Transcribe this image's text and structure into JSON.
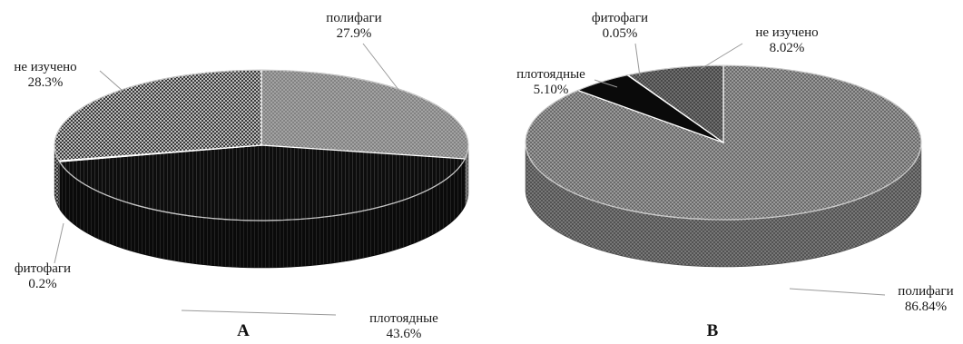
{
  "chart_data": [
    {
      "type": "pie",
      "panel_label": "A",
      "slices": [
        {
          "name": "полифаги",
          "value": 27.9,
          "label": "27.9%",
          "color": "#8a8a8a",
          "pattern": "dots-light"
        },
        {
          "name": "плотоядные",
          "value": 43.6,
          "label": "43.6%",
          "color": "#101010",
          "pattern": "vstripe-dark"
        },
        {
          "name": "фитофаги",
          "value": 0.2,
          "label": "0.2%",
          "color": "#cfcfcf",
          "pattern": "plain-light"
        },
        {
          "name": "не изучено",
          "value": 28.3,
          "label": "28.3%",
          "color": "#4a4a4a",
          "pattern": "check"
        }
      ]
    },
    {
      "type": "pie",
      "panel_label": "B",
      "slices": [
        {
          "name": "полифаги",
          "value": 86.84,
          "label": "86.84%",
          "color": "#8a8a8a",
          "pattern": "dots-mid"
        },
        {
          "name": "плотоядные",
          "value": 5.1,
          "label": "5.10%",
          "color": "#101010",
          "pattern": "solid-dark"
        },
        {
          "name": "фитофаги",
          "value": 0.05,
          "label": "0.05%",
          "color": "#cfcfcf",
          "pattern": "plain-light"
        },
        {
          "name": "не изучено",
          "value": 8.02,
          "label": "8.02%",
          "color": "#666666",
          "pattern": "dots-dark"
        }
      ]
    }
  ]
}
